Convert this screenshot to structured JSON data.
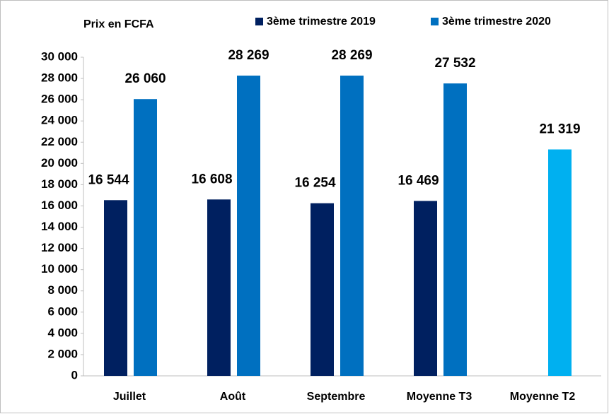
{
  "chart_data": {
    "type": "bar",
    "y_axis_title": "Prix en FCFA",
    "categories": [
      "Juillet",
      "Août",
      "Septembre",
      "Moyenne T3",
      "Moyenne  T2"
    ],
    "series": [
      {
        "name": "3ème trimestre 2019",
        "color": "#002060",
        "values": [
          16544,
          16608,
          16254,
          16469,
          null
        ],
        "value_labels": [
          "16 544",
          "16 608",
          "16 254",
          "16 469",
          null
        ]
      },
      {
        "name": "3ème trimestre 2020",
        "color": "#0070c0",
        "colors": [
          "#0070c0",
          "#0070c0",
          "#0070c0",
          "#0070c0",
          "#00b0f0"
        ],
        "values": [
          26060,
          28269,
          28269,
          27532,
          21319
        ],
        "value_labels": [
          "26 060",
          "28 269",
          "28 269",
          "27 532",
          "21 319"
        ]
      }
    ],
    "ylim": [
      0,
      30000
    ],
    "yticks": [
      0,
      {
        "value": 2000,
        "label": "2 000"
      },
      {
        "value": 4000,
        "label": "4 000"
      },
      {
        "value": 6000,
        "label": "6 000"
      },
      {
        "value": 8000,
        "label": "8 000"
      },
      {
        "value": 10000,
        "label": "10 000"
      },
      {
        "value": 12000,
        "label": "12 000"
      },
      {
        "value": 14000,
        "label": "14 000"
      },
      {
        "value": 16000,
        "label": "16 000"
      },
      {
        "value": 18000,
        "label": "18 000"
      },
      {
        "value": 20000,
        "label": "20 000"
      },
      {
        "value": 22000,
        "label": "22 000"
      },
      {
        "value": 24000,
        "label": "24 000"
      },
      {
        "value": 26000,
        "label": "26 000"
      },
      {
        "value": 28000,
        "label": "28 000"
      },
      {
        "value": 30000,
        "label": "30 000"
      }
    ],
    "grid": false,
    "legend": "top"
  }
}
